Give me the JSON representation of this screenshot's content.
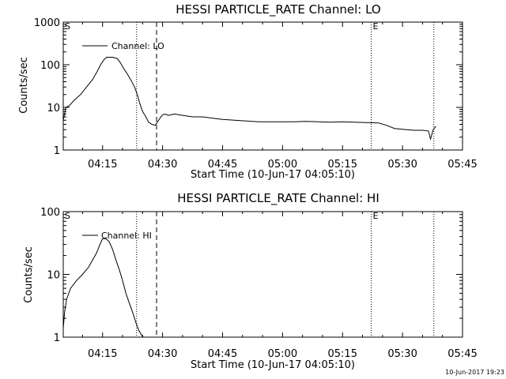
{
  "chart_data": [
    {
      "type": "line",
      "title": "HESSI PARTICLE_RATE Channel: LO",
      "xlabel": "Start Time (10-Jun-17 04:05:10)",
      "ylabel": "Counts/sec",
      "yscale": "log",
      "ylim": [
        1,
        1000
      ],
      "y_tick_labels": [
        "1000",
        "100",
        "10",
        "1"
      ],
      "xlim": [
        "04:05:10",
        "05:45:00"
      ],
      "x_tick_labels": [
        "04:15",
        "04:30",
        "04:45",
        "05:00",
        "05:15",
        "05:30",
        "05:45"
      ],
      "legend": {
        "position": "top-left",
        "entries": [
          "Channel: LO"
        ]
      },
      "markers": [
        {
          "label": "S",
          "time": "04:05:10",
          "style": "none"
        },
        {
          "label": "",
          "time": "04:23:30",
          "style": "dotted"
        },
        {
          "label": "",
          "time": "04:28:30",
          "style": "dashed"
        },
        {
          "label": "E",
          "time": "05:22:10",
          "style": "dotted"
        },
        {
          "label": "",
          "time": "05:37:50",
          "style": "dotted"
        }
      ],
      "series": [
        {
          "name": "Channel: LO",
          "x": [
            "04:05:10",
            "04:05:50",
            "04:06:40",
            "04:08:00",
            "04:09:30",
            "04:11:00",
            "04:12:30",
            "04:13:40",
            "04:14:30",
            "04:15:20",
            "04:16:00",
            "04:17:30",
            "04:18:40",
            "04:19:30",
            "04:20:20",
            "04:21:00",
            "04:22:00",
            "04:23:00",
            "04:23:40",
            "04:24:20",
            "04:25:00",
            "04:25:50",
            "04:26:30",
            "04:27:20",
            "04:28:10",
            "04:29:00",
            "04:29:50",
            "04:30:30",
            "04:31:30",
            "04:33:00",
            "04:35:00",
            "04:37:30",
            "04:40:00",
            "04:43:00",
            "04:45:00",
            "04:48:00",
            "04:51:00",
            "04:54:00",
            "04:57:00",
            "05:00:00",
            "05:03:00",
            "05:06:00",
            "05:09:00",
            "05:12:00",
            "05:15:00",
            "05:18:00",
            "05:21:00",
            "05:24:00",
            "05:26:00",
            "05:28:00",
            "05:29:30",
            "05:31:00",
            "05:33:00",
            "05:35:00",
            "05:36:30",
            "05:37:00",
            "05:37:40",
            "05:38:20"
          ],
          "values": [
            5,
            10,
            11,
            15,
            20,
            30,
            45,
            70,
            100,
            130,
            150,
            150,
            140,
            110,
            80,
            65,
            45,
            30,
            20,
            12,
            8,
            6,
            4.5,
            4,
            3.8,
            5,
            6.5,
            7,
            6.5,
            7,
            6.5,
            6,
            6,
            5.5,
            5.2,
            5,
            4.8,
            4.6,
            4.6,
            4.6,
            4.6,
            4.7,
            4.6,
            4.5,
            4.6,
            4.5,
            4.4,
            4.3,
            3.8,
            3.2,
            3.1,
            3,
            2.9,
            2.9,
            2.8,
            1.8,
            3,
            3.6
          ]
        }
      ]
    },
    {
      "type": "line",
      "title": "HESSI PARTICLE_RATE Channel: HI",
      "xlabel": "Start Time (10-Jun-17 04:05:10)",
      "ylabel": "Counts/sec",
      "yscale": "log",
      "ylim": [
        1,
        100
      ],
      "y_tick_labels": [
        "100",
        "10",
        "1"
      ],
      "xlim": [
        "04:05:10",
        "05:45:00"
      ],
      "x_tick_labels": [
        "04:15",
        "04:30",
        "04:45",
        "05:00",
        "05:15",
        "05:30",
        "05:45"
      ],
      "legend": {
        "position": "top-left",
        "entries": [
          "Channel: HI"
        ]
      },
      "markers": [
        {
          "label": "S",
          "time": "04:05:10",
          "style": "none"
        },
        {
          "label": "",
          "time": "04:23:30",
          "style": "dotted"
        },
        {
          "label": "",
          "time": "04:28:30",
          "style": "dashed"
        },
        {
          "label": "E",
          "time": "05:22:10",
          "style": "dotted"
        },
        {
          "label": "",
          "time": "05:37:50",
          "style": "dotted"
        }
      ],
      "series": [
        {
          "name": "Channel: HI",
          "x": [
            "04:05:10",
            "04:05:30",
            "04:06:00",
            "04:07:00",
            "04:08:30",
            "04:10:00",
            "04:11:30",
            "04:12:30",
            "04:13:30",
            "04:14:20",
            "04:15:00",
            "04:15:50",
            "04:16:40",
            "04:17:30",
            "04:18:20",
            "04:19:10",
            "04:20:00",
            "04:20:50",
            "04:21:40",
            "04:22:30",
            "04:23:20",
            "04:24:00",
            "04:24:40",
            "04:25:10"
          ],
          "values": [
            1.4,
            2.5,
            4,
            6,
            8,
            10,
            13,
            17,
            22,
            30,
            37,
            37,
            33,
            25,
            17,
            12,
            8,
            5,
            3.5,
            2.5,
            1.7,
            1.3,
            1.1,
            1.0
          ]
        }
      ]
    }
  ],
  "footer_timestamp": "10-Jun-2017 19:23"
}
